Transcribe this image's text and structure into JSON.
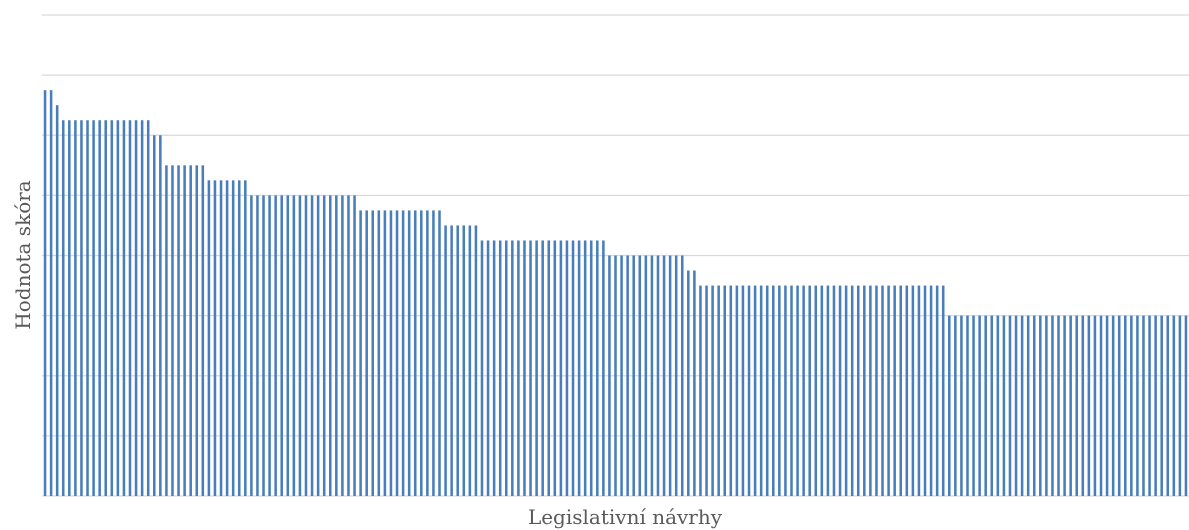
{
  "chart_data": {
    "type": "bar",
    "title": "",
    "xlabel": "Legislativní návrhy",
    "ylabel": "Hodnota skóra",
    "ylim": [
      0,
      8
    ],
    "grid": true,
    "legend": "none",
    "colors": {
      "bar": "#4a7ebb",
      "grid": "#d9d9d9",
      "axis_title": "#595959"
    },
    "bar_count": 189,
    "values": [
      6.75,
      6.75,
      6.5,
      6.25,
      6.25,
      6.25,
      6.25,
      6.25,
      6.25,
      6.25,
      6.25,
      6.25,
      6.25,
      6.25,
      6.25,
      6.25,
      6.25,
      6.25,
      6.0,
      6.0,
      5.5,
      5.5,
      5.5,
      5.5,
      5.5,
      5.5,
      5.5,
      5.25,
      5.25,
      5.25,
      5.25,
      5.25,
      5.25,
      5.25,
      5.0,
      5.0,
      5.0,
      5.0,
      5.0,
      5.0,
      5.0,
      5.0,
      5.0,
      5.0,
      5.0,
      5.0,
      5.0,
      5.0,
      5.0,
      5.0,
      5.0,
      5.0,
      4.75,
      4.75,
      4.75,
      4.75,
      4.75,
      4.75,
      4.75,
      4.75,
      4.75,
      4.75,
      4.75,
      4.75,
      4.75,
      4.75,
      4.5,
      4.5,
      4.5,
      4.5,
      4.5,
      4.5,
      4.25,
      4.25,
      4.25,
      4.25,
      4.25,
      4.25,
      4.25,
      4.25,
      4.25,
      4.25,
      4.25,
      4.25,
      4.25,
      4.25,
      4.25,
      4.25,
      4.25,
      4.25,
      4.25,
      4.25,
      4.25,
      4.0,
      4.0,
      4.0,
      4.0,
      4.0,
      4.0,
      4.0,
      4.0,
      4.0,
      4.0,
      4.0,
      4.0,
      4.0,
      3.75,
      3.75,
      3.5,
      3.5,
      3.5,
      3.5,
      3.5,
      3.5,
      3.5,
      3.5,
      3.5,
      3.5,
      3.5,
      3.5,
      3.5,
      3.5,
      3.5,
      3.5,
      3.5,
      3.5,
      3.5,
      3.5,
      3.5,
      3.5,
      3.5,
      3.5,
      3.5,
      3.5,
      3.5,
      3.5,
      3.5,
      3.5,
      3.5,
      3.5,
      3.5,
      3.5,
      3.5,
      3.5,
      3.5,
      3.5,
      3.5,
      3.5,
      3.5,
      3.0,
      3.0,
      3.0,
      3.0,
      3.0,
      3.0,
      3.0,
      3.0,
      3.0,
      3.0,
      3.0,
      3.0,
      3.0,
      3.0,
      3.0,
      3.0,
      3.0,
      3.0,
      3.0,
      3.0,
      3.0,
      3.0,
      3.0,
      3.0,
      3.0,
      3.0,
      3.0,
      3.0,
      3.0,
      3.0,
      3.0,
      3.0,
      3.0,
      3.0,
      3.0,
      3.0,
      3.0,
      3.0,
      3.0,
      3.0
    ]
  }
}
